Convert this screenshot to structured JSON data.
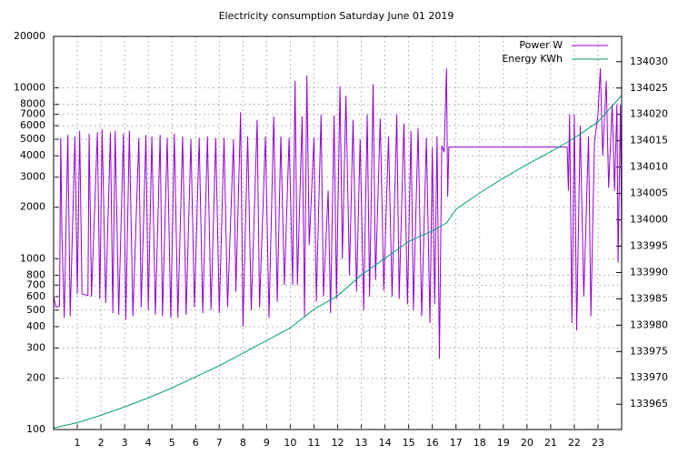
{
  "chart_data": {
    "type": "line",
    "title": "Electricity consumption Saturday June 01 2019",
    "xlim": [
      0,
      24
    ],
    "xticks": [
      1,
      2,
      3,
      4,
      5,
      6,
      7,
      8,
      9,
      10,
      11,
      12,
      13,
      14,
      15,
      16,
      17,
      18,
      19,
      20,
      21,
      22,
      23
    ],
    "ylim": [
      100,
      20000
    ],
    "ylog": true,
    "yticks": [
      100,
      200,
      300,
      400,
      500,
      600,
      700,
      800,
      1000,
      2000,
      3000,
      4000,
      5000,
      6000,
      7000,
      8000,
      10000,
      20000
    ],
    "y2lim": [
      133960.2,
      134034.8
    ],
    "y2ticks": [
      133965,
      133970,
      133975,
      133980,
      133985,
      133990,
      133995,
      134000,
      134005,
      134010,
      134015,
      134020,
      134025,
      134030
    ],
    "grid": true,
    "legend": "top-right",
    "series": [
      {
        "name": "Power W",
        "color": "#9400d3",
        "x": [
          0,
          0.1,
          0.25,
          0.3,
          0.35,
          0.45,
          0.6,
          0.7,
          0.9,
          1.0,
          1.1,
          1.2,
          1.45,
          1.5,
          1.6,
          1.85,
          1.95,
          2.05,
          2.2,
          2.4,
          2.5,
          2.6,
          2.75,
          2.95,
          3.05,
          3.2,
          3.35,
          3.6,
          3.7,
          3.9,
          4.0,
          4.15,
          4.3,
          4.5,
          4.6,
          4.8,
          4.95,
          5.1,
          5.25,
          5.45,
          5.6,
          5.8,
          5.95,
          6.15,
          6.3,
          6.5,
          6.65,
          6.85,
          7.0,
          7.2,
          7.35,
          7.6,
          7.7,
          7.9,
          8.0,
          8.2,
          8.35,
          8.6,
          8.7,
          8.95,
          9.1,
          9.3,
          9.45,
          9.6,
          9.75,
          9.95,
          10.1,
          10.2,
          10.3,
          10.5,
          10.6,
          10.7,
          10.8,
          11.0,
          11.1,
          11.3,
          11.4,
          11.6,
          11.7,
          11.85,
          11.95,
          12.1,
          12.2,
          12.35,
          12.5,
          12.65,
          12.8,
          12.95,
          13.1,
          13.25,
          13.35,
          13.5,
          13.6,
          13.8,
          13.95,
          14.15,
          14.3,
          14.5,
          14.6,
          14.8,
          14.95,
          15.1,
          15.2,
          15.4,
          15.55,
          15.75,
          15.9,
          16.0,
          16.1,
          16.2,
          16.3,
          16.4,
          16.5,
          16.6,
          16.65,
          16.7,
          21.7,
          21.75,
          21.8,
          21.9,
          22.0,
          22.1,
          22.25,
          22.4,
          22.6,
          22.7,
          22.85,
          23.0,
          23.1,
          23.2,
          23.35,
          23.45,
          23.6,
          23.7,
          23.8,
          23.85,
          23.95,
          24.0
        ],
        "values": [
          600,
          520,
          530,
          5100,
          1400,
          450,
          5300,
          460,
          5200,
          620,
          5600,
          620,
          610,
          5400,
          600,
          5500,
          580,
          5700,
          550,
          5500,
          480,
          5600,
          470,
          5400,
          440,
          5600,
          460,
          5100,
          520,
          5300,
          500,
          5200,
          470,
          5300,
          460,
          5100,
          450,
          5400,
          450,
          5200,
          470,
          5000,
          520,
          5100,
          480,
          5200,
          500,
          5100,
          480,
          5100,
          520,
          5000,
          640,
          7200,
          400,
          5200,
          500,
          6500,
          520,
          5200,
          450,
          6800,
          560,
          5200,
          700,
          5100,
          700,
          11000,
          700,
          6800,
          460,
          11800,
          1200,
          5100,
          560,
          7000,
          600,
          2500,
          480,
          6900,
          580,
          10200,
          1000,
          9000,
          800,
          6500,
          640,
          5000,
          500,
          7000,
          600,
          10500,
          750,
          6600,
          650,
          5200,
          600,
          7000,
          580,
          6200,
          540,
          5600,
          500,
          5800,
          460,
          5100,
          420,
          4500,
          540,
          5200,
          260,
          4600,
          4200,
          13000,
          2300,
          4500,
          4500,
          2500,
          7000,
          420,
          7000,
          380,
          6000,
          600,
          5200,
          460,
          4800,
          7000,
          13000,
          4000,
          11000,
          2600,
          8000,
          2500,
          8000,
          950,
          8000,
          1200
        ]
      },
      {
        "name": "Energy KWh",
        "color": "#009e73",
        "axis": "y2",
        "x": [
          0,
          1,
          2,
          3,
          4,
          5,
          6,
          7,
          8,
          9,
          10,
          11,
          12,
          13,
          14,
          15,
          16,
          16.6,
          17,
          18,
          19,
          20,
          21,
          22,
          23,
          24
        ],
        "values": [
          133960.5,
          133961.5,
          133962.9,
          133964.5,
          133966.2,
          133968.1,
          133970.2,
          133972.3,
          133974.7,
          133977.1,
          133979.5,
          133983,
          133985.6,
          133989.5,
          133992.7,
          133995.9,
          133997.9,
          133999.4,
          134002,
          134005.1,
          134007.9,
          134010.5,
          134012.9,
          134015.5,
          134018.6,
          134023.6
        ]
      }
    ]
  }
}
